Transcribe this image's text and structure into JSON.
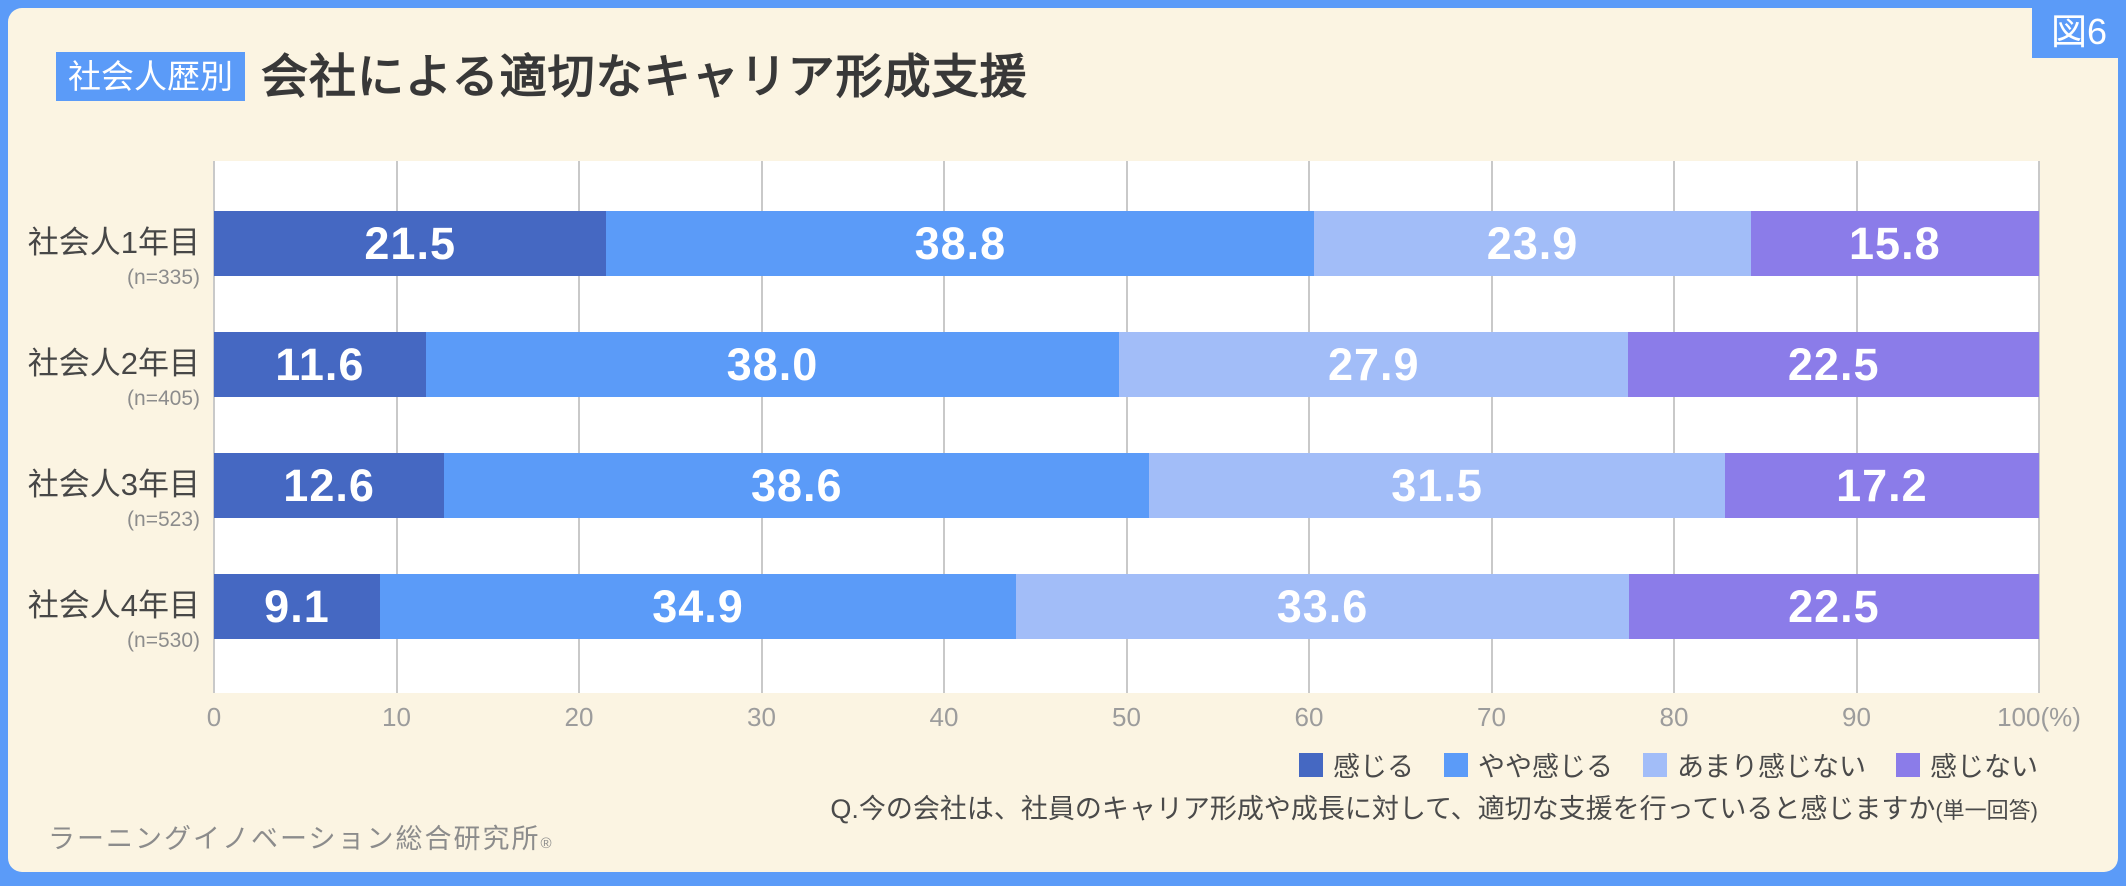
{
  "figure_tag": "図6",
  "header": {
    "badge": "社会人歴別",
    "title": "会社による適切なキャリア形成支援"
  },
  "question": {
    "text": "Q.今の会社は、社員のキャリア形成や成長に対して、適切な支援を行っていると感じますか",
    "note": "(単一回答)"
  },
  "footer": {
    "source": "ラーニングイノベーション総合研究所",
    "mark": "®"
  },
  "colors": {
    "frame": "#5b9bf8",
    "background": "#fbf4e2",
    "plot_background": "#ffffff",
    "gridline": "#c9c9c9",
    "title_text": "#383838",
    "axis_text": "#9c9c9c",
    "bar_value_text": "#ffffff"
  },
  "chart_data": {
    "type": "bar",
    "orientation": "horizontal-stacked",
    "title": "会社による適切なキャリア形成支援",
    "categories": [
      "社会人1年目",
      "社会人2年目",
      "社会人3年目",
      "社会人4年目"
    ],
    "sample_sizes": [
      "(n=335)",
      "(n=405)",
      "(n=523)",
      "(n=530)"
    ],
    "series": [
      {
        "name": "感じる",
        "color": "#4568c2",
        "values": [
          21.5,
          11.6,
          12.6,
          9.1
        ]
      },
      {
        "name": "やや感じる",
        "color": "#5b9bf8",
        "values": [
          38.8,
          38.0,
          38.6,
          34.9
        ]
      },
      {
        "name": "あまり感じない",
        "color": "#a2bdf8",
        "values": [
          23.9,
          27.9,
          31.5,
          33.6
        ]
      },
      {
        "name": "感じない",
        "color": "#8b7ce9",
        "values": [
          15.8,
          22.5,
          17.2,
          22.5
        ]
      }
    ],
    "x_ticks": [
      0,
      10,
      20,
      30,
      40,
      50,
      60,
      70,
      80,
      90,
      100
    ],
    "x_axis_unit": "(%)",
    "xlim": [
      0,
      100
    ],
    "grid": true,
    "legend_position": "bottom-right",
    "value_format": "one-decimal"
  }
}
